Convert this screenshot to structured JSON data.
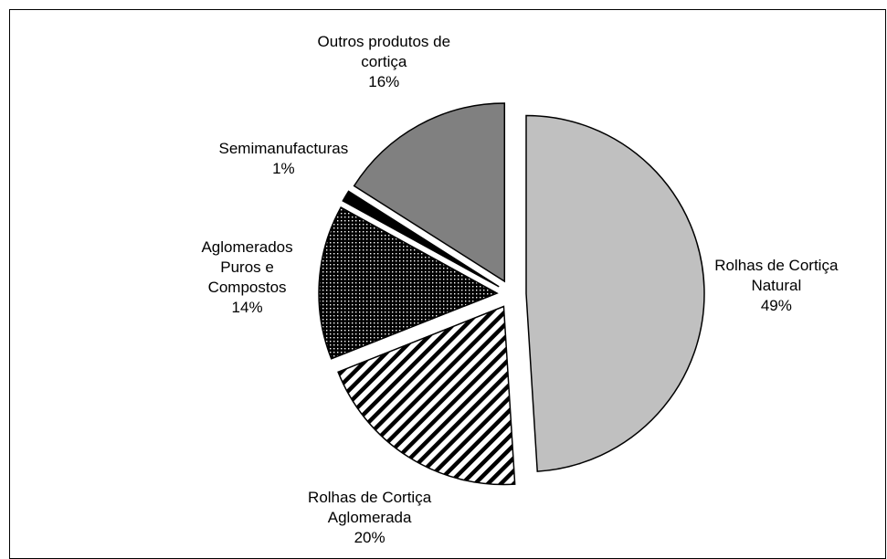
{
  "chart_data": {
    "type": "pie",
    "categories": [
      "Rolhas de Cortiça Natural",
      "Rolhas de Cortiça Aglomerada",
      "Aglomerados Puros e Compostos",
      "Semimanufacturas",
      "Outros produtos de cortiça"
    ],
    "values": [
      49,
      20,
      14,
      1,
      16
    ],
    "value_labels": [
      "49%",
      "20%",
      "14%",
      "1%",
      "16%"
    ],
    "colors": [
      "#c0c0c0",
      "#ffffff",
      "#000000",
      "#000000",
      "#808080"
    ],
    "patterns": [
      null,
      "diagonal-stripes",
      "dots",
      null,
      null
    ],
    "exploded": true
  }
}
